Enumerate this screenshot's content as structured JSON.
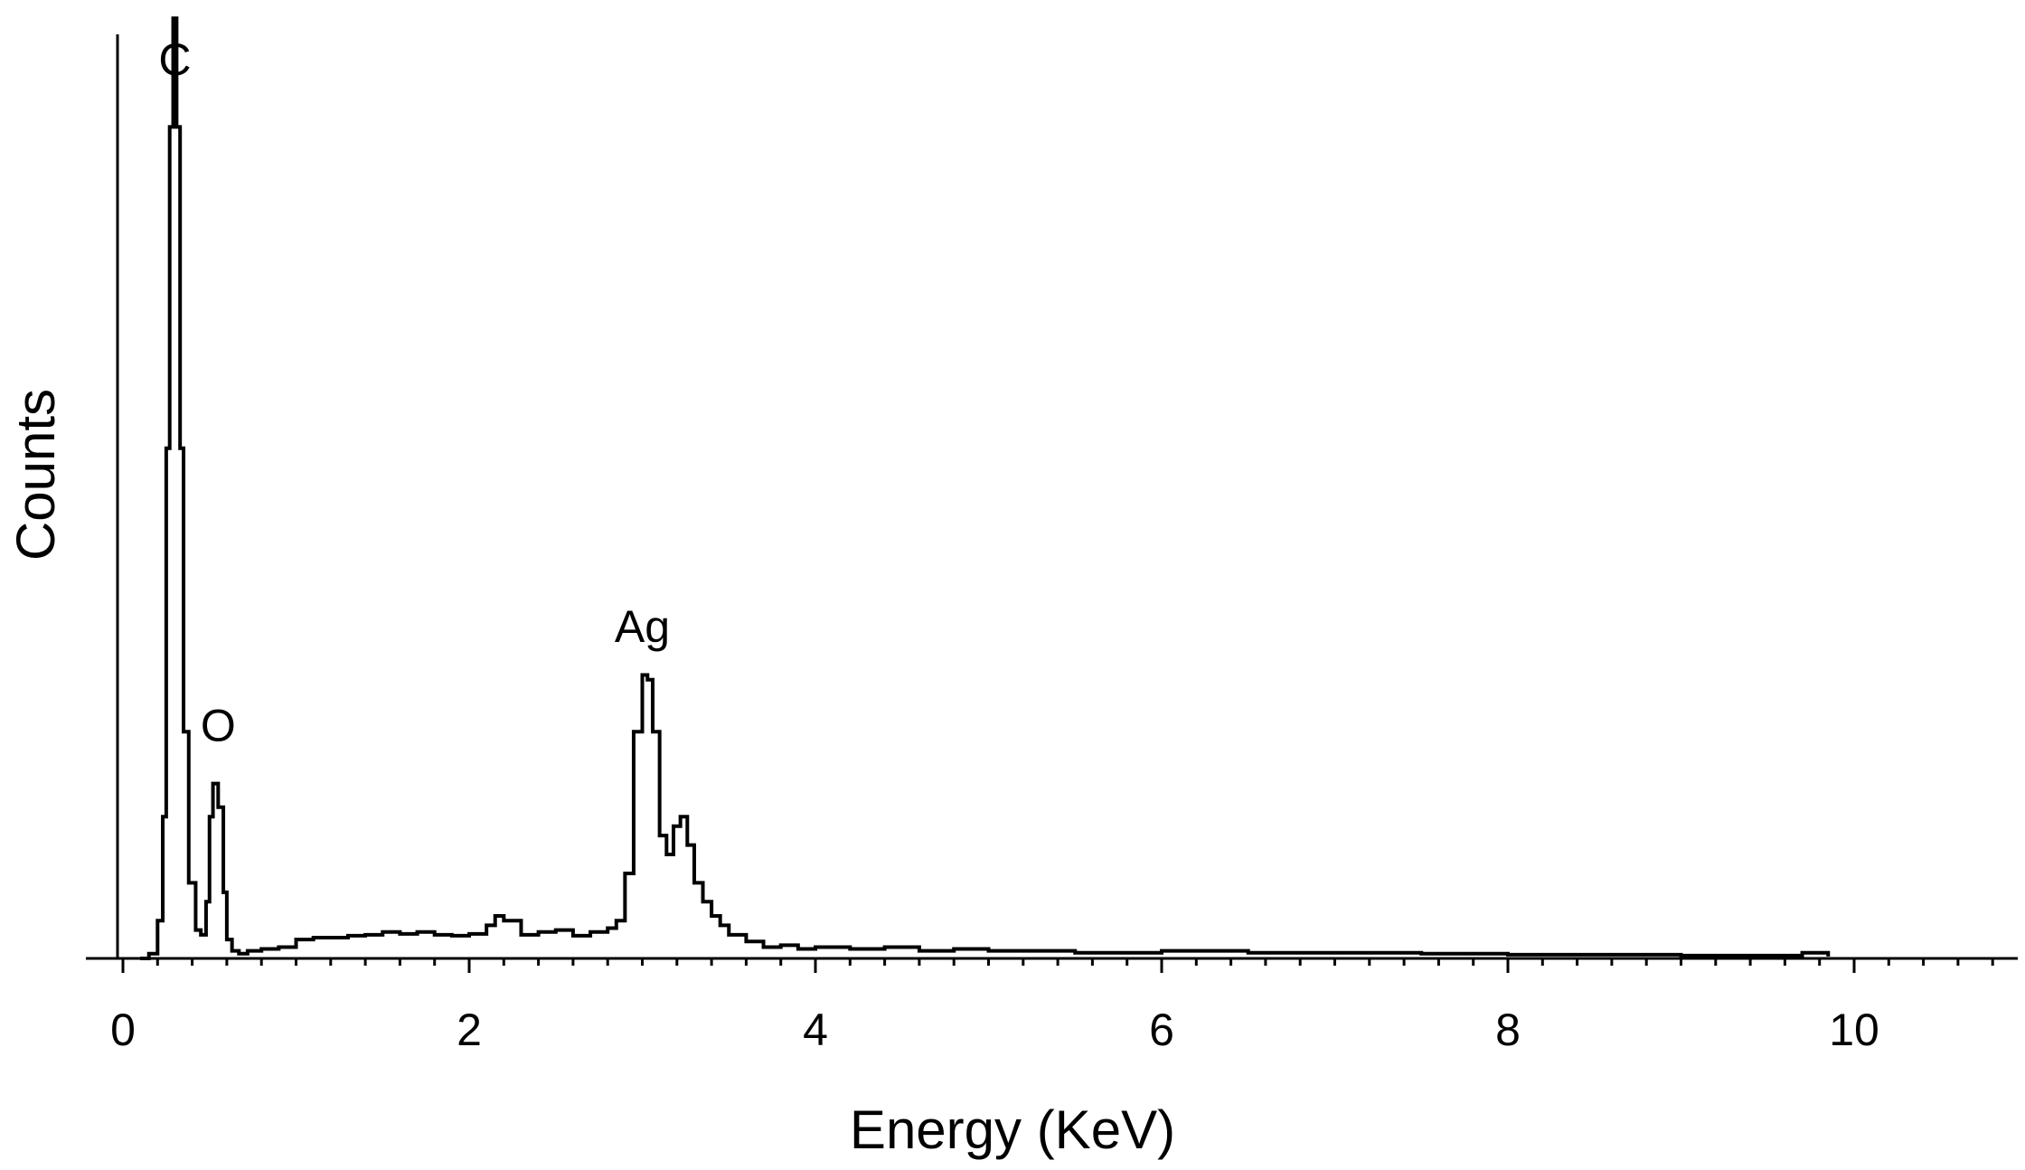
{
  "chart_data": {
    "type": "line",
    "title": "",
    "xlabel": "Energy (KeV)",
    "ylabel": "Counts",
    "xlim": [
      -0.2,
      11
    ],
    "ylim": [
      0,
      1000
    ],
    "x_ticks": [
      {
        "value": 0,
        "label": "0"
      },
      {
        "value": 2,
        "label": "2"
      },
      {
        "value": 4,
        "label": "4"
      },
      {
        "value": 6,
        "label": "6"
      },
      {
        "value": 8,
        "label": "8"
      },
      {
        "value": 10,
        "label": "10"
      }
    ],
    "grid": false,
    "annotations": [
      {
        "text": "C",
        "x": 0.3,
        "y": 935
      },
      {
        "text": "O",
        "x": 0.55,
        "y": 230
      },
      {
        "text": "Ag",
        "x": 3.0,
        "y": 335
      }
    ],
    "series": [
      {
        "x": [
          0.1,
          0.15,
          0.2,
          0.23,
          0.25,
          0.27,
          0.29,
          0.31,
          0.33,
          0.35,
          0.38,
          0.42,
          0.45,
          0.48,
          0.5,
          0.52,
          0.55,
          0.58,
          0.6,
          0.63,
          0.67,
          0.72,
          0.8,
          0.9,
          1.0,
          1.1,
          1.2,
          1.3,
          1.4,
          1.5,
          1.6,
          1.7,
          1.8,
          1.9,
          2.0,
          2.1,
          2.15,
          2.2,
          2.3,
          2.4,
          2.5,
          2.6,
          2.7,
          2.8,
          2.85,
          2.9,
          2.95,
          3.0,
          3.03,
          3.06,
          3.1,
          3.14,
          3.18,
          3.22,
          3.26,
          3.3,
          3.35,
          3.4,
          3.45,
          3.5,
          3.6,
          3.7,
          3.8,
          3.9,
          4.0,
          4.2,
          4.4,
          4.6,
          4.8,
          5.0,
          5.5,
          6.0,
          6.5,
          7.0,
          7.5,
          8.0,
          8.5,
          9.0,
          9.5,
          9.7,
          9.85
        ],
        "y": [
          0,
          5,
          40,
          150,
          540,
          880,
          995,
          880,
          540,
          240,
          80,
          30,
          25,
          60,
          150,
          185,
          160,
          70,
          20,
          8,
          5,
          8,
          10,
          12,
          20,
          22,
          22,
          24,
          25,
          28,
          26,
          28,
          25,
          24,
          26,
          35,
          45,
          40,
          25,
          28,
          30,
          24,
          28,
          32,
          40,
          90,
          240,
          300,
          295,
          240,
          130,
          110,
          140,
          150,
          120,
          80,
          60,
          45,
          35,
          25,
          18,
          12,
          14,
          10,
          12,
          10,
          12,
          8,
          10,
          8,
          6,
          8,
          6,
          6,
          5,
          4,
          4,
          3,
          3,
          6,
          2
        ]
      }
    ]
  }
}
